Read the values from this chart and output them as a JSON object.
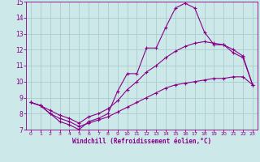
{
  "xlabel": "Windchill (Refroidissement éolien,°C)",
  "background_color": "#cce8e8",
  "grid_color": "#aacccc",
  "line_color": "#880088",
  "xlim": [
    -0.5,
    23.5
  ],
  "ylim": [
    7,
    15
  ],
  "xticks": [
    0,
    1,
    2,
    3,
    4,
    5,
    6,
    7,
    8,
    9,
    10,
    11,
    12,
    13,
    14,
    15,
    16,
    17,
    18,
    19,
    20,
    21,
    22,
    23
  ],
  "yticks": [
    7,
    8,
    9,
    10,
    11,
    12,
    13,
    14,
    15
  ],
  "curve1_x": [
    0,
    1,
    2,
    3,
    4,
    5,
    6,
    7,
    8,
    9,
    10,
    11,
    12,
    13,
    14,
    15,
    16,
    17,
    18,
    19,
    20,
    21,
    22,
    23
  ],
  "curve1_y": [
    8.7,
    8.5,
    8.0,
    7.5,
    7.3,
    7.0,
    7.5,
    7.7,
    8.0,
    9.4,
    10.5,
    10.5,
    12.1,
    12.1,
    13.4,
    14.6,
    14.9,
    14.6,
    13.1,
    12.3,
    12.3,
    11.8,
    11.5,
    9.8
  ],
  "curve2_x": [
    0,
    1,
    2,
    3,
    4,
    5,
    6,
    7,
    8,
    9,
    10,
    11,
    12,
    13,
    14,
    15,
    16,
    17,
    18,
    19,
    20,
    21,
    22,
    23
  ],
  "curve2_y": [
    8.7,
    8.5,
    8.2,
    7.9,
    7.7,
    7.4,
    7.8,
    8.0,
    8.3,
    8.8,
    9.5,
    10.0,
    10.6,
    11.0,
    11.5,
    11.9,
    12.2,
    12.4,
    12.5,
    12.4,
    12.3,
    12.0,
    11.6,
    9.8
  ],
  "curve3_x": [
    0,
    1,
    2,
    3,
    4,
    5,
    6,
    7,
    8,
    9,
    10,
    11,
    12,
    13,
    14,
    15,
    16,
    17,
    18,
    19,
    20,
    21,
    22,
    23
  ],
  "curve3_y": [
    8.7,
    8.5,
    8.0,
    7.7,
    7.5,
    7.2,
    7.4,
    7.6,
    7.8,
    8.1,
    8.4,
    8.7,
    9.0,
    9.3,
    9.6,
    9.8,
    9.9,
    10.0,
    10.1,
    10.2,
    10.2,
    10.3,
    10.3,
    9.8
  ]
}
